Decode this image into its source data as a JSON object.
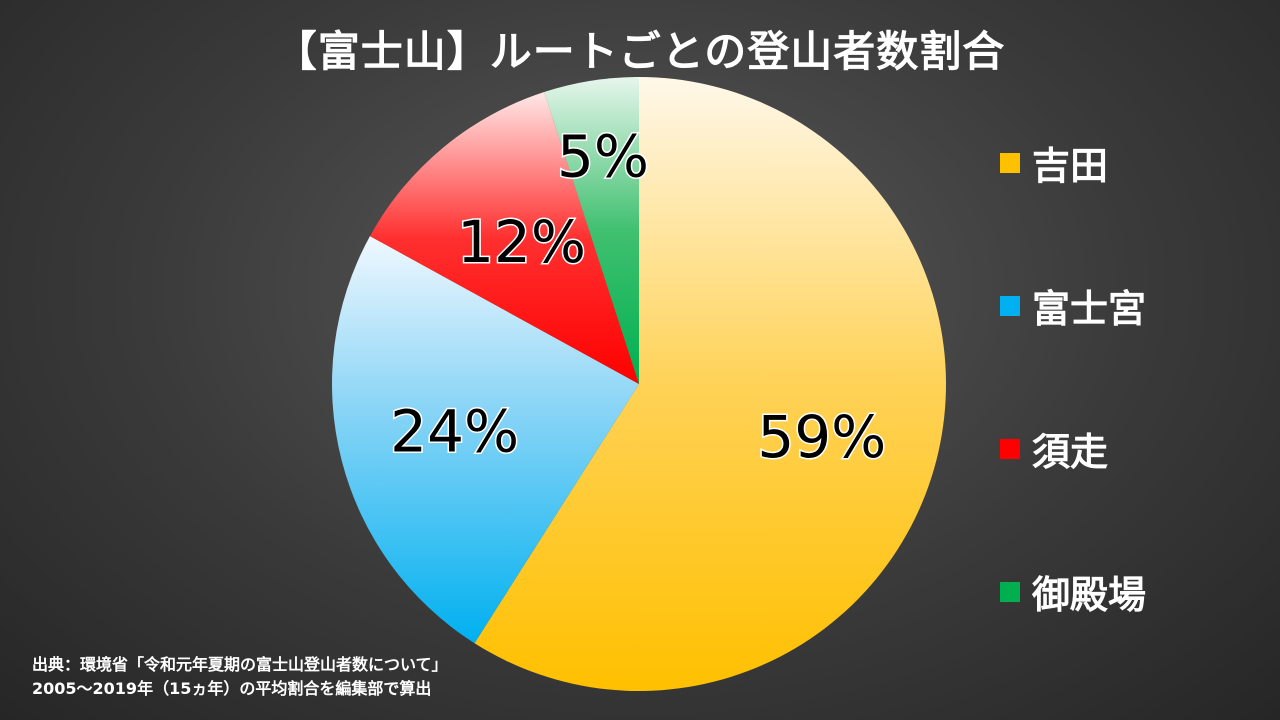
{
  "chart_data": {
    "type": "pie",
    "title": "【富士山】ルートごとの登山者数割合",
    "categories": [
      "吉田",
      "富士宮",
      "須走",
      "御殿場"
    ],
    "values": [
      59,
      24,
      12,
      5
    ],
    "value_labels": [
      "59%",
      "24%",
      "12%",
      "5%"
    ],
    "unit": "%",
    "legend_position": "right",
    "colors": [
      "#ffc000",
      "#00b0f0",
      "#ff0000",
      "#00b050"
    ]
  },
  "source": {
    "line1": "出典：環境省「令和元年夏期の富士山登山者数について」",
    "line2": "2005～2019年（15ヵ年）の平均割合を編集部で算出"
  }
}
